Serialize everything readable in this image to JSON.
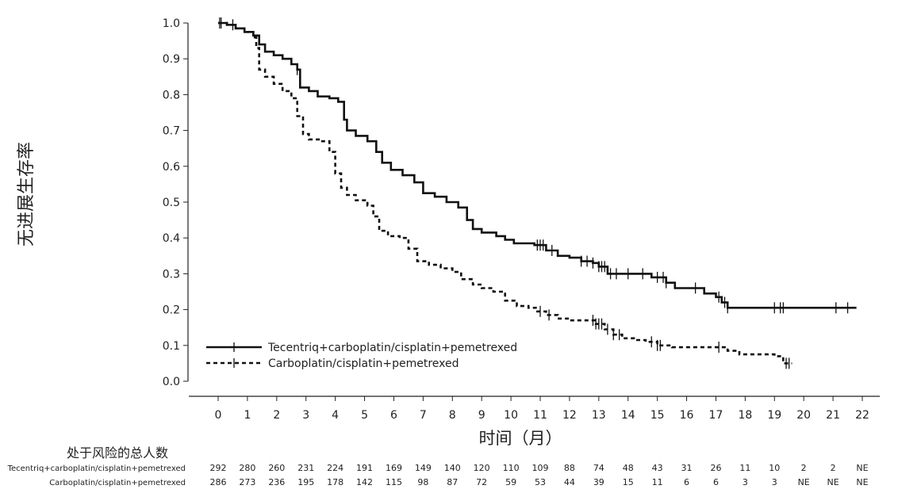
{
  "chart_data": {
    "type": "line",
    "title": "",
    "xlabel": "时间（月）",
    "ylabel": "无进展生存率",
    "xlim": [
      0,
      22
    ],
    "ylim": [
      0,
      1.0
    ],
    "x_ticks": [
      0,
      1,
      2,
      3,
      4,
      5,
      6,
      7,
      8,
      9,
      10,
      11,
      12,
      13,
      14,
      15,
      16,
      17,
      18,
      19,
      20,
      21,
      22
    ],
    "y_ticks": [
      "0.0",
      "0.1",
      "0.2",
      "0.3",
      "0.4",
      "0.5",
      "0.6",
      "0.7",
      "0.8",
      "0.9",
      "1.0"
    ],
    "grid": false,
    "legend_position": "bottom-left",
    "series": [
      {
        "name": "Tecentriq+carboplatin/cisplatin+pemetrexed",
        "style": "solid",
        "color": "#111111",
        "points": [
          [
            0,
            1.0
          ],
          [
            0.3,
            0.995
          ],
          [
            0.6,
            0.985
          ],
          [
            0.9,
            0.975
          ],
          [
            1.2,
            0.965
          ],
          [
            1.4,
            0.94
          ],
          [
            1.6,
            0.92
          ],
          [
            1.9,
            0.91
          ],
          [
            2.2,
            0.9
          ],
          [
            2.5,
            0.885
          ],
          [
            2.7,
            0.87
          ],
          [
            2.8,
            0.82
          ],
          [
            3.1,
            0.81
          ],
          [
            3.4,
            0.795
          ],
          [
            3.8,
            0.79
          ],
          [
            4.1,
            0.78
          ],
          [
            4.3,
            0.73
          ],
          [
            4.4,
            0.7
          ],
          [
            4.7,
            0.685
          ],
          [
            5.1,
            0.67
          ],
          [
            5.4,
            0.64
          ],
          [
            5.6,
            0.61
          ],
          [
            5.9,
            0.59
          ],
          [
            6.3,
            0.575
          ],
          [
            6.7,
            0.555
          ],
          [
            7.0,
            0.525
          ],
          [
            7.4,
            0.515
          ],
          [
            7.8,
            0.5
          ],
          [
            8.2,
            0.485
          ],
          [
            8.5,
            0.45
          ],
          [
            8.7,
            0.425
          ],
          [
            9.0,
            0.415
          ],
          [
            9.5,
            0.405
          ],
          [
            9.8,
            0.395
          ],
          [
            10.1,
            0.385
          ],
          [
            10.5,
            0.385
          ],
          [
            10.8,
            0.38
          ],
          [
            11.2,
            0.365
          ],
          [
            11.6,
            0.35
          ],
          [
            12.0,
            0.345
          ],
          [
            12.4,
            0.335
          ],
          [
            12.8,
            0.33
          ],
          [
            13.0,
            0.32
          ],
          [
            13.3,
            0.3
          ],
          [
            13.8,
            0.3
          ],
          [
            14.6,
            0.3
          ],
          [
            14.8,
            0.29
          ],
          [
            15.3,
            0.275
          ],
          [
            15.6,
            0.26
          ],
          [
            16.2,
            0.26
          ],
          [
            16.6,
            0.245
          ],
          [
            17.0,
            0.235
          ],
          [
            17.2,
            0.22
          ],
          [
            17.4,
            0.205
          ],
          [
            18.0,
            0.205
          ],
          [
            19.0,
            0.205
          ],
          [
            20.0,
            0.205
          ],
          [
            21.0,
            0.205
          ],
          [
            21.8,
            0.205
          ]
        ],
        "censor": [
          0.05,
          0.5,
          2.7,
          10.9,
          11.0,
          11.1,
          11.4,
          12.4,
          12.6,
          12.8,
          13.0,
          13.1,
          13.2,
          13.4,
          13.6,
          14.0,
          14.5,
          15.0,
          15.2,
          15.3,
          16.3,
          17.1,
          17.3,
          17.4,
          19.0,
          19.2,
          19.3,
          21.1,
          21.5
        ]
      },
      {
        "name": "Carboplatin/cisplatin+pemetrexed",
        "style": "dashed",
        "color": "#111111",
        "points": [
          [
            0,
            1.0
          ],
          [
            0.3,
            0.995
          ],
          [
            0.6,
            0.985
          ],
          [
            0.9,
            0.975
          ],
          [
            1.2,
            0.96
          ],
          [
            1.3,
            0.93
          ],
          [
            1.4,
            0.87
          ],
          [
            1.6,
            0.85
          ],
          [
            1.9,
            0.83
          ],
          [
            2.2,
            0.81
          ],
          [
            2.5,
            0.79
          ],
          [
            2.7,
            0.74
          ],
          [
            2.9,
            0.69
          ],
          [
            3.1,
            0.675
          ],
          [
            3.5,
            0.67
          ],
          [
            3.8,
            0.64
          ],
          [
            4.0,
            0.58
          ],
          [
            4.2,
            0.54
          ],
          [
            4.4,
            0.52
          ],
          [
            4.7,
            0.505
          ],
          [
            5.1,
            0.49
          ],
          [
            5.3,
            0.46
          ],
          [
            5.5,
            0.42
          ],
          [
            5.8,
            0.405
          ],
          [
            6.2,
            0.4
          ],
          [
            6.5,
            0.37
          ],
          [
            6.8,
            0.335
          ],
          [
            7.2,
            0.325
          ],
          [
            7.6,
            0.315
          ],
          [
            8.0,
            0.305
          ],
          [
            8.3,
            0.285
          ],
          [
            8.7,
            0.27
          ],
          [
            9.0,
            0.26
          ],
          [
            9.4,
            0.25
          ],
          [
            9.8,
            0.225
          ],
          [
            10.2,
            0.21
          ],
          [
            10.6,
            0.205
          ],
          [
            10.9,
            0.195
          ],
          [
            11.2,
            0.185
          ],
          [
            11.6,
            0.175
          ],
          [
            12.0,
            0.17
          ],
          [
            12.6,
            0.17
          ],
          [
            12.9,
            0.16
          ],
          [
            13.2,
            0.145
          ],
          [
            13.5,
            0.13
          ],
          [
            13.8,
            0.12
          ],
          [
            14.2,
            0.115
          ],
          [
            14.6,
            0.11
          ],
          [
            15.0,
            0.1
          ],
          [
            15.5,
            0.095
          ],
          [
            16.2,
            0.095
          ],
          [
            17.0,
            0.095
          ],
          [
            17.4,
            0.085
          ],
          [
            17.8,
            0.075
          ],
          [
            18.5,
            0.075
          ],
          [
            19.0,
            0.07
          ],
          [
            19.3,
            0.05
          ],
          [
            19.6,
            0.05
          ]
        ],
        "censor": [
          0.1,
          11.0,
          11.3,
          12.8,
          12.9,
          13.0,
          13.1,
          13.3,
          13.5,
          13.7,
          14.8,
          15.0,
          15.1,
          17.1,
          19.4,
          19.5
        ]
      }
    ],
    "risk_table": {
      "title": "处于风险的总人数",
      "rows": [
        {
          "label": "Tecentriq+carboplatin/cisplatin+pemetrexed",
          "values": [
            "292",
            "280",
            "260",
            "231",
            "224",
            "191",
            "169",
            "149",
            "140",
            "120",
            "110",
            "109",
            "88",
            "74",
            "48",
            "43",
            "31",
            "26",
            "11",
            "10",
            "2",
            "2",
            "NE"
          ]
        },
        {
          "label": "Carboplatin/cisplatin+pemetrexed",
          "values": [
            "286",
            "273",
            "236",
            "195",
            "178",
            "142",
            "115",
            "98",
            "87",
            "72",
            "59",
            "53",
            "44",
            "39",
            "15",
            "11",
            "6",
            "6",
            "3",
            "3",
            "NE",
            "NE",
            "NE"
          ]
        }
      ]
    }
  }
}
